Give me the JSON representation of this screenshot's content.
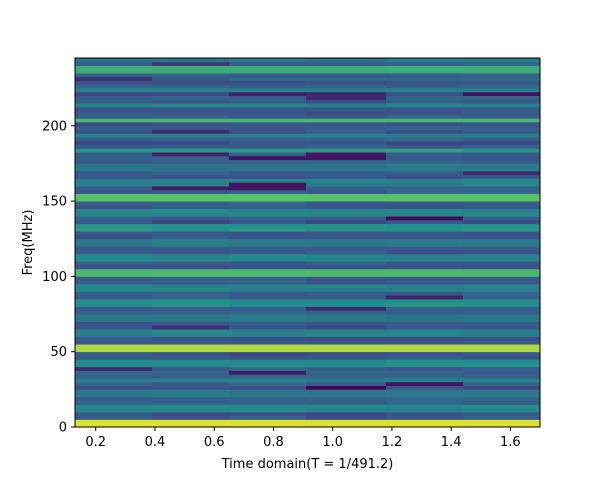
{
  "chart_data": {
    "type": "heatmap",
    "title": "",
    "xlabel": "Time domain(T = 1/491.2)",
    "ylabel": "Freq(MHz)",
    "xlim": [
      0.13,
      1.7
    ],
    "ylim": [
      0,
      245
    ],
    "x_ticks": [
      0.2,
      0.4,
      0.6,
      0.8,
      1.0,
      1.2,
      1.4,
      1.6
    ],
    "x_tick_labels": [
      "0.2",
      "0.4",
      "0.6",
      "0.8",
      "1.0",
      "1.2",
      "1.4",
      "1.6"
    ],
    "y_ticks": [
      0,
      50,
      100,
      150,
      200
    ],
    "y_tick_labels": [
      "0",
      "50",
      "100",
      "150",
      "200"
    ],
    "time_bins": [
      [
        0.13,
        0.39
      ],
      [
        0.39,
        0.65
      ],
      [
        0.65,
        0.91
      ],
      [
        0.91,
        1.18
      ],
      [
        1.18,
        1.44
      ],
      [
        1.44,
        1.7
      ]
    ],
    "freq_bin_width": 2.5,
    "colormap": "viridis",
    "color_scale": [
      0,
      1
    ],
    "grid": false,
    "legend": "none",
    "strong_bands": [
      {
        "freq": 2.5,
        "level": 0.95
      },
      {
        "freq": 52,
        "level": 0.88
      },
      {
        "freq": 102,
        "level": 0.68
      },
      {
        "freq": 153,
        "level": 0.72
      },
      {
        "freq": 204,
        "level": 0.66
      },
      {
        "freq": 237,
        "level": 0.62
      }
    ],
    "medium_bands": [
      {
        "freq": 12,
        "level": 0.46
      },
      {
        "freq": 22,
        "level": 0.4
      },
      {
        "freq": 31,
        "level": 0.44
      },
      {
        "freq": 43,
        "level": 0.48
      },
      {
        "freq": 62,
        "level": 0.45
      },
      {
        "freq": 72,
        "level": 0.4
      },
      {
        "freq": 82,
        "level": 0.5
      },
      {
        "freq": 92,
        "level": 0.44
      },
      {
        "freq": 112,
        "level": 0.46
      },
      {
        "freq": 122,
        "level": 0.42
      },
      {
        "freq": 133,
        "level": 0.52
      },
      {
        "freq": 143,
        "level": 0.46
      },
      {
        "freq": 163,
        "level": 0.44
      },
      {
        "freq": 173,
        "level": 0.4
      },
      {
        "freq": 184,
        "level": 0.55
      },
      {
        "freq": 194,
        "level": 0.44
      },
      {
        "freq": 214,
        "level": 0.45
      },
      {
        "freq": 224,
        "level": 0.43
      },
      {
        "freq": 244,
        "level": 0.4
      }
    ],
    "dark_spots": [
      {
        "freq": 26,
        "bin": 3,
        "level": 0.02
      },
      {
        "freq": 28,
        "bin": 4,
        "level": 0.05
      },
      {
        "freq": 37,
        "bin": 2,
        "level": 0.08
      },
      {
        "freq": 39,
        "bin": 0,
        "level": 0.12
      },
      {
        "freq": 66,
        "bin": 1,
        "level": 0.14
      },
      {
        "freq": 78,
        "bin": 3,
        "level": 0.12
      },
      {
        "freq": 87,
        "bin": 4,
        "level": 0.1
      },
      {
        "freq": 139,
        "bin": 4,
        "level": 0.03
      },
      {
        "freq": 158,
        "bin": 1,
        "level": 0.08
      },
      {
        "freq": 160,
        "bin": 2,
        "level": 0.06
      },
      {
        "freq": 179,
        "bin": 2,
        "level": 0.05
      },
      {
        "freq": 180,
        "bin": 3,
        "level": 0.06
      },
      {
        "freq": 181,
        "bin": 1,
        "level": 0.1
      },
      {
        "freq": 169,
        "bin": 5,
        "level": 0.12
      },
      {
        "freq": 197,
        "bin": 1,
        "level": 0.14
      },
      {
        "freq": 221,
        "bin": 2,
        "level": 0.1
      },
      {
        "freq": 220,
        "bin": 3,
        "level": 0.12
      },
      {
        "freq": 221,
        "bin": 5,
        "level": 0.05
      },
      {
        "freq": 231,
        "bin": 0,
        "level": 0.14
      },
      {
        "freq": 241,
        "bin": 1,
        "level": 0.16
      }
    ]
  }
}
